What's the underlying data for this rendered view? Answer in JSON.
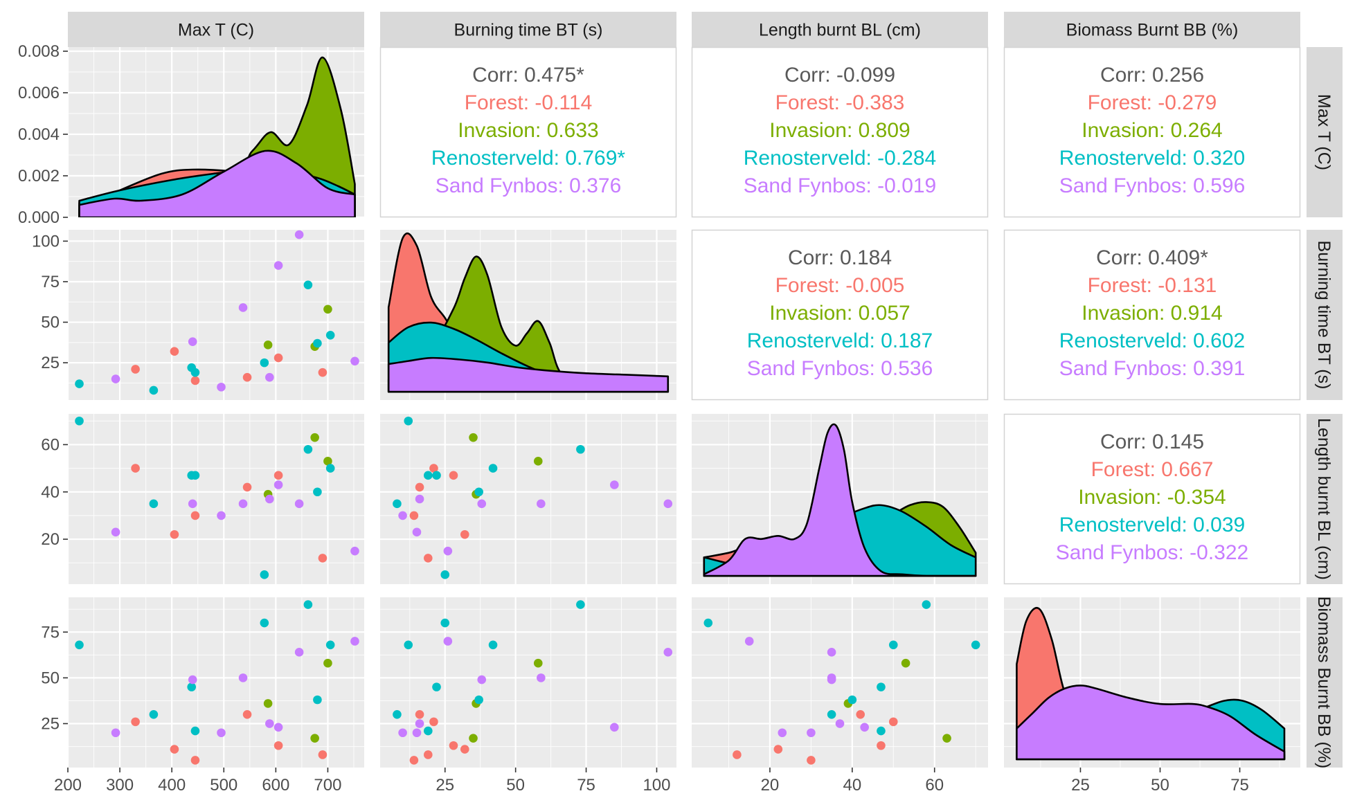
{
  "variables": [
    "Max T (C)",
    "Burning time BT (s)",
    "Length burnt BL (cm)",
    "Biomass Burnt BB (%)"
  ],
  "groups": [
    {
      "name": "Forest",
      "color": "#F8766D"
    },
    {
      "name": "Invasion",
      "color": "#7CAE00"
    },
    {
      "name": "Renosterveld",
      "color": "#00BFC4"
    },
    {
      "name": "Sand Fynbos",
      "color": "#C77CFF"
    }
  ],
  "chart_data": {
    "type": "scatter",
    "title": "",
    "axes": [
      {
        "name": "Max T (C)",
        "range": [
          200,
          770
        ],
        "ticks": [
          200,
          300,
          400,
          500,
          600,
          700
        ],
        "tick_labels": [
          "200",
          "300",
          "400",
          "500",
          "600",
          "700"
        ]
      },
      {
        "name": "Burning time BT (s)",
        "range": [
          2,
          107
        ],
        "ticks": [
          25,
          50,
          75,
          100
        ],
        "tick_labels": [
          "25",
          "50",
          "75",
          "100"
        ]
      },
      {
        "name": "Length burnt BL (cm)",
        "range": [
          1,
          73
        ],
        "ticks": [
          20,
          40,
          60
        ],
        "tick_labels": [
          "20",
          "40",
          "60"
        ]
      },
      {
        "name": "Biomass Burnt BB (%)",
        "range": [
          1,
          94
        ],
        "ticks": [
          25,
          50,
          75
        ],
        "tick_labels": [
          "25",
          "50",
          "75"
        ]
      }
    ],
    "density_axis": {
      "range": [
        0,
        0.0082
      ],
      "ticks": [
        0,
        0.002,
        0.004,
        0.006,
        0.008
      ],
      "tick_labels": [
        "0.000",
        "0.002",
        "0.004",
        "0.006",
        "0.008"
      ]
    },
    "points": [
      {
        "g": 0,
        "v": [
          330,
          21,
          50,
          26
        ]
      },
      {
        "g": 0,
        "v": [
          405,
          32,
          22,
          11
        ]
      },
      {
        "g": 0,
        "v": [
          445,
          14,
          30,
          5
        ]
      },
      {
        "g": 0,
        "v": [
          545,
          16,
          42,
          30
        ]
      },
      {
        "g": 0,
        "v": [
          605,
          28,
          47,
          13
        ]
      },
      {
        "g": 0,
        "v": [
          690,
          19,
          12,
          8
        ]
      },
      {
        "g": 1,
        "v": [
          585,
          36,
          39,
          36
        ]
      },
      {
        "g": 1,
        "v": [
          675,
          35,
          63,
          17
        ]
      },
      {
        "g": 1,
        "v": [
          700,
          58,
          53,
          58
        ]
      },
      {
        "g": 2,
        "v": [
          222,
          12,
          70,
          68
        ]
      },
      {
        "g": 2,
        "v": [
          365,
          8,
          35,
          30
        ]
      },
      {
        "g": 2,
        "v": [
          438,
          22,
          47,
          45
        ]
      },
      {
        "g": 2,
        "v": [
          445,
          19,
          47,
          21
        ]
      },
      {
        "g": 2,
        "v": [
          578,
          25,
          5,
          80
        ]
      },
      {
        "g": 2,
        "v": [
          662,
          73,
          58,
          90
        ]
      },
      {
        "g": 2,
        "v": [
          680,
          37,
          40,
          38
        ]
      },
      {
        "g": 2,
        "v": [
          705,
          42,
          50,
          68
        ]
      },
      {
        "g": 3,
        "v": [
          292,
          15,
          23,
          20
        ]
      },
      {
        "g": 3,
        "v": [
          440,
          38,
          35,
          49
        ]
      },
      {
        "g": 3,
        "v": [
          495,
          10,
          30,
          20
        ]
      },
      {
        "g": 3,
        "v": [
          537,
          59,
          35,
          50
        ]
      },
      {
        "g": 3,
        "v": [
          588,
          16,
          37,
          25
        ]
      },
      {
        "g": 3,
        "v": [
          605,
          85,
          43,
          23
        ]
      },
      {
        "g": 3,
        "v": [
          645,
          104,
          35,
          64
        ]
      },
      {
        "g": 3,
        "v": [
          752,
          26,
          15,
          70
        ]
      }
    ],
    "densities": [
      {
        "var": 0,
        "series": [
          {
            "g": 0,
            "x": [
              222,
              300,
              380,
              440,
              520,
              580,
              650,
              700,
              752
            ],
            "y": [
              0.0004,
              0.0013,
              0.0021,
              0.0023,
              0.0022,
              0.0019,
              0.0016,
              0.0013,
              0.0009
            ]
          },
          {
            "g": 1,
            "x": [
              222,
              500,
              555,
              590,
              625,
              660,
              690,
              725,
              752
            ],
            "y": [
              0.0007,
              0.0019,
              0.0032,
              0.0041,
              0.0035,
              0.0054,
              0.0077,
              0.0052,
              0.0016
            ]
          },
          {
            "g": 2,
            "x": [
              222,
              300,
              400,
              480,
              560,
              620,
              680,
              720,
              752
            ],
            "y": [
              0.0008,
              0.0013,
              0.0018,
              0.0021,
              0.0023,
              0.0022,
              0.0019,
              0.0015,
              0.0011
            ]
          },
          {
            "g": 3,
            "x": [
              222,
              290,
              340,
              420,
              500,
              580,
              640,
              700,
              752
            ],
            "y": [
              0.0006,
              0.0009,
              0.0008,
              0.0011,
              0.0022,
              0.0032,
              0.0026,
              0.0014,
              0.0011
            ]
          }
        ]
      },
      {
        "var": 1,
        "series": [
          {
            "g": 0,
            "x": [
              5,
              10,
              15,
              20,
              25,
              30,
              35,
              45,
              60,
              80,
              104
            ],
            "y": [
              0.55,
              1.0,
              0.95,
              0.62,
              0.48,
              0.34,
              0.2,
              0.07,
              0.02,
              0.01,
              0.0
            ]
          },
          {
            "g": 1,
            "x": [
              5,
              20,
              28,
              32,
              36,
              40,
              45,
              50,
              54,
              58,
              62,
              67,
              80,
              104
            ],
            "y": [
              0.08,
              0.3,
              0.54,
              0.74,
              0.88,
              0.76,
              0.42,
              0.3,
              0.38,
              0.46,
              0.32,
              0.1,
              0.02,
              0.0
            ]
          },
          {
            "g": 2,
            "x": [
              5,
              12,
              20,
              28,
              36,
              45,
              55,
              65,
              80,
              104
            ],
            "y": [
              0.32,
              0.42,
              0.45,
              0.41,
              0.34,
              0.25,
              0.16,
              0.09,
              0.03,
              0.01
            ]
          },
          {
            "g": 3,
            "x": [
              5,
              12,
              20,
              30,
              40,
              50,
              60,
              75,
              90,
              104
            ],
            "y": [
              0.18,
              0.2,
              0.22,
              0.21,
              0.19,
              0.16,
              0.14,
              0.12,
              0.11,
              0.1
            ]
          }
        ]
      },
      {
        "var": 2,
        "series": [
          {
            "g": 0,
            "x": [
              4,
              10,
              15,
              20,
              25,
              30,
              35,
              40,
              45,
              50,
              55,
              60,
              70
            ],
            "y": [
              0.12,
              0.15,
              0.19,
              0.17,
              0.2,
              0.18,
              0.15,
              0.13,
              0.1,
              0.07,
              0.04,
              0.02,
              0.01
            ]
          },
          {
            "g": 1,
            "x": [
              4,
              30,
              38,
              44,
              50,
              54,
              58,
              62,
              66,
              70
            ],
            "y": [
              0.02,
              0.05,
              0.15,
              0.3,
              0.4,
              0.46,
              0.48,
              0.45,
              0.32,
              0.15
            ]
          },
          {
            "g": 2,
            "x": [
              4,
              15,
              25,
              32,
              38,
              43,
              47,
              52,
              58,
              64,
              70
            ],
            "y": [
              0.12,
              0.06,
              0.1,
              0.25,
              0.38,
              0.44,
              0.46,
              0.42,
              0.32,
              0.2,
              0.12
            ]
          },
          {
            "g": 3,
            "x": [
              4,
              10,
              14,
              18,
              22,
              26,
              29,
              32,
              34,
              36,
              38,
              40,
              43,
              47,
              52,
              58,
              70
            ],
            "y": [
              0.01,
              0.1,
              0.24,
              0.24,
              0.26,
              0.24,
              0.34,
              0.7,
              0.93,
              0.98,
              0.82,
              0.48,
              0.18,
              0.03,
              0.01,
              0.0,
              0.0
            ]
          }
        ]
      },
      {
        "var": 3,
        "series": [
          {
            "g": 0,
            "x": [
              5,
              8,
              12,
              16,
              20,
              24,
              28,
              32,
              40,
              50,
              60,
              75,
              89
            ],
            "y": [
              0.62,
              0.9,
              0.98,
              0.78,
              0.44,
              0.35,
              0.36,
              0.26,
              0.14,
              0.06,
              0.03,
              0.01,
              0.0
            ]
          },
          {
            "g": 1,
            "x": [
              5,
              20,
              30,
              40,
              50,
              55,
              60,
              70,
              80,
              89
            ],
            "y": [
              0.05,
              0.18,
              0.32,
              0.3,
              0.32,
              0.33,
              0.31,
              0.2,
              0.08,
              0.03
            ]
          },
          {
            "g": 2,
            "x": [
              5,
              15,
              25,
              35,
              45,
              55,
              62,
              70,
              76,
              82,
              89
            ],
            "y": [
              0.06,
              0.14,
              0.22,
              0.26,
              0.26,
              0.28,
              0.32,
              0.38,
              0.38,
              0.32,
              0.2
            ]
          },
          {
            "g": 3,
            "x": [
              5,
              10,
              15,
              20,
              25,
              30,
              40,
              50,
              60,
              65,
              72,
              80,
              89
            ],
            "y": [
              0.2,
              0.3,
              0.4,
              0.46,
              0.48,
              0.46,
              0.4,
              0.36,
              0.36,
              0.34,
              0.28,
              0.16,
              0.05
            ]
          }
        ]
      }
    ],
    "correlations": [
      {
        "row": 0,
        "col": 1,
        "lines": [
          "Corr: 0.475*",
          "Forest: -0.114",
          "Invasion: 0.633",
          "Renosterveld: 0.769*",
          "Sand Fynbos: 0.376"
        ]
      },
      {
        "row": 0,
        "col": 2,
        "lines": [
          "Corr: -0.099",
          "Forest: -0.383",
          "Invasion: 0.809",
          "Renosterveld: -0.284",
          "Sand Fynbos: -0.019"
        ]
      },
      {
        "row": 0,
        "col": 3,
        "lines": [
          "Corr: 0.256",
          "Forest: -0.279",
          "Invasion: 0.264",
          "Renosterveld: 0.320",
          "Sand Fynbos: 0.596"
        ]
      },
      {
        "row": 1,
        "col": 2,
        "lines": [
          "Corr: 0.184",
          "Forest: -0.005",
          "Invasion: 0.057",
          "Renosterveld: 0.187",
          "Sand Fynbos: 0.536"
        ]
      },
      {
        "row": 1,
        "col": 3,
        "lines": [
          "Corr: 0.409*",
          "Forest: -0.131",
          "Invasion: 0.914",
          "Renosterveld: 0.602",
          "Sand Fynbos: 0.391"
        ]
      },
      {
        "row": 2,
        "col": 3,
        "lines": [
          "Corr: 0.145",
          "Forest: 0.667",
          "Invasion: -0.354",
          "Renosterveld: 0.039",
          "Sand Fynbos: -0.322"
        ]
      }
    ]
  }
}
